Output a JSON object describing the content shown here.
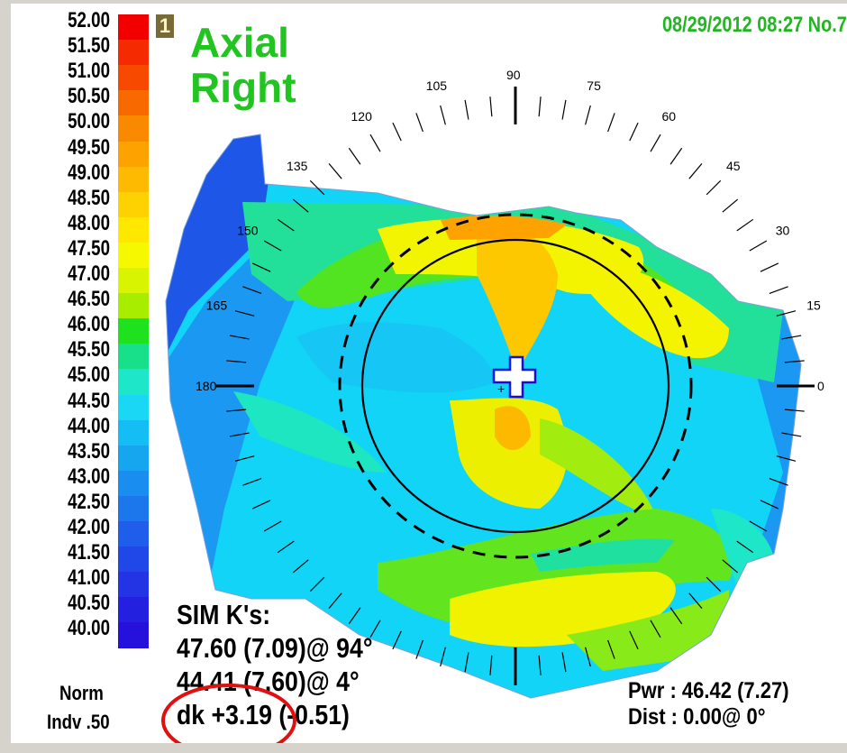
{
  "scale": {
    "labels": [
      "52.00",
      "51.50",
      "51.00",
      "50.50",
      "50.00",
      "49.50",
      "49.00",
      "48.50",
      "48.00",
      "47.50",
      "47.00",
      "46.50",
      "46.00",
      "45.50",
      "45.00",
      "44.50",
      "44.00",
      "43.50",
      "43.00",
      "42.50",
      "42.00",
      "41.50",
      "41.00",
      "40.50",
      "40.00"
    ],
    "colors": [
      "#f20000",
      "#f52a00",
      "#f74a00",
      "#f86a00",
      "#f98a00",
      "#fca300",
      "#fdba00",
      "#fed200",
      "#fee800",
      "#f6f800",
      "#d8f400",
      "#a8ec00",
      "#1ee21e",
      "#18e08a",
      "#1ee6c8",
      "#1ad8f4",
      "#14bef4",
      "#16a6f0",
      "#198ef0",
      "#1c76ec",
      "#1e5eea",
      "#2048e8",
      "#2234e4",
      "#2420e0",
      "#2610dc"
    ],
    "norm_label": "Norm",
    "indv_label": "Indv .50"
  },
  "map": {
    "page_number": "1",
    "title_line1": "Axial",
    "title_line2": "Right",
    "datetime": "08/29/2012 08:27 No.7",
    "angle_labels": [
      "0",
      "15",
      "30",
      "45",
      "60",
      "75",
      "90",
      "105",
      "120",
      "135",
      "150",
      "165",
      "180"
    ],
    "sim_k_title": "SIM K's:",
    "sim_k_line1": "47.60 (7.09)@ 94°",
    "sim_k_line2": "44.41 (7.60)@  4°",
    "sim_k_line3": "dk +3.19 (-0.51)",
    "pwr_line": "Pwr :  46.42 (7.27)",
    "dist_line": "Dist :  0.00@  0°",
    "annotation_color": "#e01010"
  }
}
